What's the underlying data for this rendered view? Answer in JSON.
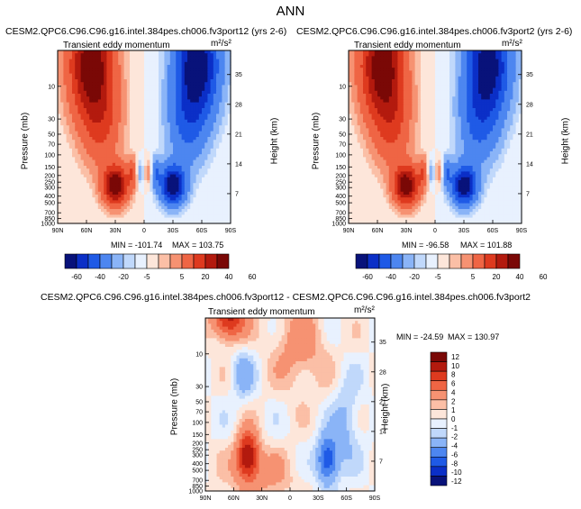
{
  "title": "ANN",
  "panels": [
    {
      "id": "top-left",
      "case_title": "CESM2.QPC6.C96.C96.g16.intel.384pes.ch006.fv3port12 (yrs 2-6)",
      "subtitle": "Transient eddy momentum",
      "units": "m²/s²",
      "min_label": "MIN = -101.74",
      "max_label": "MAX = 103.75"
    },
    {
      "id": "top-right",
      "case_title": "CESM2.QPC6.C96.C96.g16.intel.384pes.ch006.fv3port2 (yrs 2-6)",
      "subtitle": "Transient eddy momentum",
      "units": "m²/s²",
      "min_label": "MIN = -96.58",
      "max_label": "MAX = 101.88"
    },
    {
      "id": "bottom-diff",
      "case_title": "CESM2.QPC6.C96.C96.g16.intel.384pes.ch006.fv3port12 - CESM2.QPC6.C96.C96.g16.intel.384pes.ch006.fv3port2",
      "subtitle": "Transient eddy momentum",
      "units": "m²/s²",
      "min_label": "MIN = -24.59",
      "max_label": "MAX = 130.97"
    }
  ],
  "axes": {
    "ylabel_left": "Pressure (mb)",
    "ylabel_right": "Height (km)",
    "pressure_ticks": [
      "10",
      "30",
      "50",
      "70",
      "100",
      "150",
      "200",
      "250",
      "300",
      "400",
      "500",
      "700",
      "850",
      "1000"
    ],
    "height_ticks": [
      "35",
      "28",
      "21",
      "14",
      "7"
    ],
    "lat_ticks": [
      "90N",
      "60N",
      "30N",
      "0",
      "30S",
      "60S",
      "90S"
    ]
  },
  "colorbars": {
    "main_labels": [
      "-60",
      "-40",
      "-20",
      "-5",
      "5",
      "20",
      "40",
      "60"
    ],
    "main_colors": [
      "#08127a",
      "#0b2fc7",
      "#1f5ae6",
      "#4d86f0",
      "#8ab4f7",
      "#c0d8fb",
      "#e8f1fe",
      "#fde6da",
      "#fbbfa6",
      "#f69272",
      "#ef6544",
      "#de3a1f",
      "#b31a0e",
      "#7a0806"
    ],
    "diff_labels": [
      "12",
      "10",
      "8",
      "6",
      "4",
      "2",
      "1",
      "0",
      "-1",
      "-2",
      "-4",
      "-6",
      "-8",
      "-10",
      "-12"
    ],
    "diff_colors": [
      "#7a0806",
      "#b31a0e",
      "#de3a1f",
      "#ef6544",
      "#f69272",
      "#fbbfa6",
      "#fde6da",
      "#e8f1fe",
      "#c0d8fb",
      "#8ab4f7",
      "#4d86f0",
      "#1f5ae6",
      "#0b2fc7",
      "#08127a"
    ]
  },
  "chart_data": [
    {
      "type": "heatmap",
      "title": "Transient eddy momentum",
      "case": "CESM2.QPC6.C96.C96.g16.intel.384pes.ch006.fv3port12 (yrs 2-6)",
      "xlabel": "",
      "ylabel": "Pressure (mb)",
      "xlim": [
        90,
        -90
      ],
      "ylim_pressure_mb": [
        1000,
        3
      ],
      "x_ticks": [
        "90N",
        "60N",
        "30N",
        "0",
        "30S",
        "60S",
        "90S"
      ],
      "units": "m²/s²",
      "min": -101.74,
      "max": 103.75,
      "contour_levels": [
        -60,
        -40,
        -20,
        -5,
        5,
        20,
        40,
        60
      ],
      "features": [
        {
          "desc": "upper positive maximum",
          "lat": 55,
          "pressure_mb": 5,
          "value": 100
        },
        {
          "desc": "upper negative minimum",
          "lat": -55,
          "pressure_mb": 5,
          "value": -100
        },
        {
          "desc": "lower positive jet core",
          "lat": 30,
          "pressure_mb": 280,
          "value": 100
        },
        {
          "desc": "lower negative jet core",
          "lat": -30,
          "pressure_mb": 280,
          "value": -100
        }
      ]
    },
    {
      "type": "heatmap",
      "title": "Transient eddy momentum",
      "case": "CESM2.QPC6.C96.C96.g16.intel.384pes.ch006.fv3port2 (yrs 2-6)",
      "xlabel": "",
      "ylabel": "Pressure (mb)",
      "xlim": [
        90,
        -90
      ],
      "ylim_pressure_mb": [
        1000,
        3
      ],
      "x_ticks": [
        "90N",
        "60N",
        "30N",
        "0",
        "30S",
        "60S",
        "90S"
      ],
      "units": "m²/s²",
      "min": -96.58,
      "max": 101.88,
      "contour_levels": [
        -60,
        -40,
        -20,
        -5,
        5,
        20,
        40,
        60
      ],
      "features": [
        {
          "desc": "upper positive maximum",
          "lat": 55,
          "pressure_mb": 5,
          "value": 98
        },
        {
          "desc": "upper negative minimum",
          "lat": -55,
          "pressure_mb": 5,
          "value": -96
        },
        {
          "desc": "lower positive jet core",
          "lat": 30,
          "pressure_mb": 280,
          "value": 98
        },
        {
          "desc": "lower negative jet core",
          "lat": -30,
          "pressure_mb": 280,
          "value": -96
        }
      ]
    },
    {
      "type": "heatmap",
      "title": "Transient eddy momentum",
      "case": "CESM2.QPC6.C96.C96.g16.intel.384pes.ch006.fv3port12 - CESM2.QPC6.C96.C96.g16.intel.384pes.ch006.fv3port2",
      "xlabel": "",
      "ylabel": "Pressure (mb)",
      "xlim": [
        90,
        -90
      ],
      "ylim_pressure_mb": [
        1000,
        3
      ],
      "x_ticks": [
        "90N",
        "60N",
        "30N",
        "0",
        "30S",
        "60S",
        "90S"
      ],
      "units": "m²/s²",
      "min": -24.59,
      "max": 130.97,
      "contour_levels": [
        -12,
        -10,
        -8,
        -6,
        -4,
        -2,
        -1,
        0,
        1,
        2,
        4,
        6,
        8,
        10,
        12
      ],
      "features": [
        {
          "desc": "lower positive difference",
          "lat": 45,
          "pressure_mb": 300,
          "value": 10
        },
        {
          "desc": "negative difference",
          "lat": -40,
          "pressure_mb": 350,
          "value": -8
        },
        {
          "desc": "upper negative difference",
          "lat": 50,
          "pressure_mb": 20,
          "value": -3
        }
      ]
    }
  ]
}
